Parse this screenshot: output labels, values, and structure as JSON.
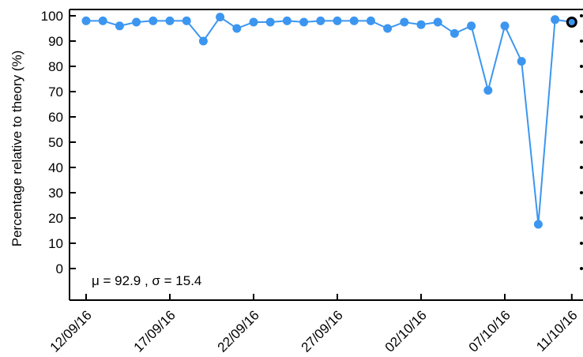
{
  "chart_data": {
    "type": "line",
    "ylabel": "Percentage relative to theory (%)",
    "ylim": [
      -10,
      100
    ],
    "yticks": [
      0,
      10,
      20,
      30,
      40,
      50,
      60,
      70,
      80,
      90,
      100
    ],
    "xticks": [
      "12/09/16",
      "17/09/16",
      "22/09/16",
      "27/09/16",
      "02/10/16",
      "07/10/16",
      "11/10/16"
    ],
    "xtick_dates": [
      "2016-09-12",
      "2016-09-17",
      "2016-09-22",
      "2016-09-27",
      "2016-10-02",
      "2016-10-07",
      "2016-10-11"
    ],
    "grid": false,
    "series": [
      {
        "color": "#3c96f0",
        "x": [
          "2016-09-12",
          "2016-09-13",
          "2016-09-14",
          "2016-09-15",
          "2016-09-16",
          "2016-09-17",
          "2016-09-18",
          "2016-09-19",
          "2016-09-20",
          "2016-09-21",
          "2016-09-22",
          "2016-09-23",
          "2016-09-24",
          "2016-09-25",
          "2016-09-26",
          "2016-09-27",
          "2016-09-28",
          "2016-09-29",
          "2016-09-30",
          "2016-10-01",
          "2016-10-02",
          "2016-10-03",
          "2016-10-04",
          "2016-10-05",
          "2016-10-06",
          "2016-10-07",
          "2016-10-08",
          "2016-10-09",
          "2016-10-10",
          "2016-10-11"
        ],
        "values": [
          98,
          98,
          96,
          97.5,
          98,
          98,
          98,
          90,
          99.5,
          95,
          97.5,
          97.5,
          98,
          97.5,
          98,
          98,
          98,
          98,
          95,
          97.5,
          96.5,
          97.5,
          93,
          96,
          70.5,
          96,
          82,
          17.5,
          98.5,
          97.5
        ]
      }
    ],
    "highlight_point": {
      "x": "2016-10-11",
      "value": 97.5,
      "edge_color": "#000000"
    },
    "annotation": "μ = 92.9 , σ = 15.4"
  }
}
